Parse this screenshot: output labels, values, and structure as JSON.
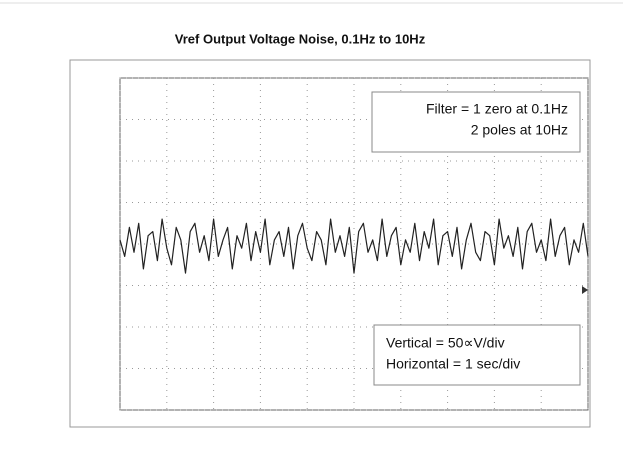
{
  "chart_data": {
    "type": "line",
    "title": "Vref Output Voltage Noise, 0.1Hz to 10Hz",
    "annotations": [
      "Filter = 1 zero at 0.1Hz",
      "2 poles at 10Hz",
      "Vertical = 50∝V/div",
      "Horizontal = 1 sec/div"
    ],
    "x": [
      0,
      0.1,
      0.2,
      0.3,
      0.4,
      0.5,
      0.6,
      0.7,
      0.8,
      0.9,
      1,
      1.1,
      1.2,
      1.3,
      1.4,
      1.5,
      1.6,
      1.7,
      1.8,
      1.9,
      2,
      2.1,
      2.2,
      2.3,
      2.4,
      2.5,
      2.6,
      2.7,
      2.8,
      2.9,
      3,
      3.1,
      3.2,
      3.3,
      3.4,
      3.5,
      3.6,
      3.7,
      3.8,
      3.9,
      4,
      4.1,
      4.2,
      4.3,
      4.4,
      4.5,
      4.6,
      4.7,
      4.8,
      4.9,
      5,
      5.1,
      5.2,
      5.3,
      5.4,
      5.5,
      5.6,
      5.7,
      5.8,
      5.9,
      6,
      6.1,
      6.2,
      6.3,
      6.4,
      6.5,
      6.6,
      6.7,
      6.8,
      6.9,
      7,
      7.1,
      7.2,
      7.3,
      7.4,
      7.5,
      7.6,
      7.7,
      7.8,
      7.9,
      8,
      8.1,
      8.2,
      8.3,
      8.4,
      8.5,
      8.6,
      8.7,
      8.8,
      8.9,
      9,
      9.1,
      9.2,
      9.3,
      9.4,
      9.5,
      9.6,
      9.7,
      9.8,
      9.9,
      10
    ],
    "series": [
      {
        "color": "#222222",
        "values": [
          0.1,
          -0.3,
          0.4,
          -0.2,
          0.5,
          -0.6,
          0.2,
          0.3,
          -0.4,
          0.6,
          -0.1,
          -0.5,
          0.4,
          0.1,
          -0.7,
          0.3,
          0.5,
          -0.2,
          0.2,
          -0.4,
          0.6,
          -0.3,
          0.1,
          0.4,
          -0.6,
          0.2,
          -0.1,
          0.5,
          -0.4,
          0.3,
          -0.2,
          0.6,
          -0.5,
          0.1,
          0.3,
          -0.3,
          0.4,
          -0.6,
          0.2,
          0.5,
          -0.1,
          -0.4,
          0.3,
          0.1,
          -0.5,
          0.6,
          -0.2,
          0.2,
          -0.3,
          0.4,
          -0.7,
          0.3,
          0.5,
          -0.2,
          0.1,
          -0.4,
          0.6,
          -0.3,
          0.2,
          0.4,
          -0.5,
          0.1,
          -0.2,
          0.5,
          -0.4,
          0.3,
          -0.1,
          0.6,
          -0.5,
          0.2,
          0.3,
          -0.3,
          0.4,
          -0.6,
          0.1,
          0.5,
          -0.2,
          -0.4,
          0.3,
          0.2,
          -0.5,
          0.6,
          -0.1,
          0.2,
          -0.3,
          0.4,
          -0.6,
          0.3,
          0.5,
          -0.2,
          0.1,
          -0.4,
          0.6,
          -0.3,
          0.2,
          0.4,
          -0.5,
          0.1,
          -0.2,
          0.5,
          -0.3
        ]
      }
    ],
    "xlim": [
      0,
      10
    ],
    "xticks": [
      0,
      1,
      2,
      3,
      4,
      5,
      6,
      7,
      8,
      9,
      10
    ],
    "ylim": [
      -4,
      4
    ],
    "yticks": [
      -4,
      -3,
      -2,
      -1,
      0,
      1,
      2,
      3,
      4
    ],
    "grid": true
  }
}
